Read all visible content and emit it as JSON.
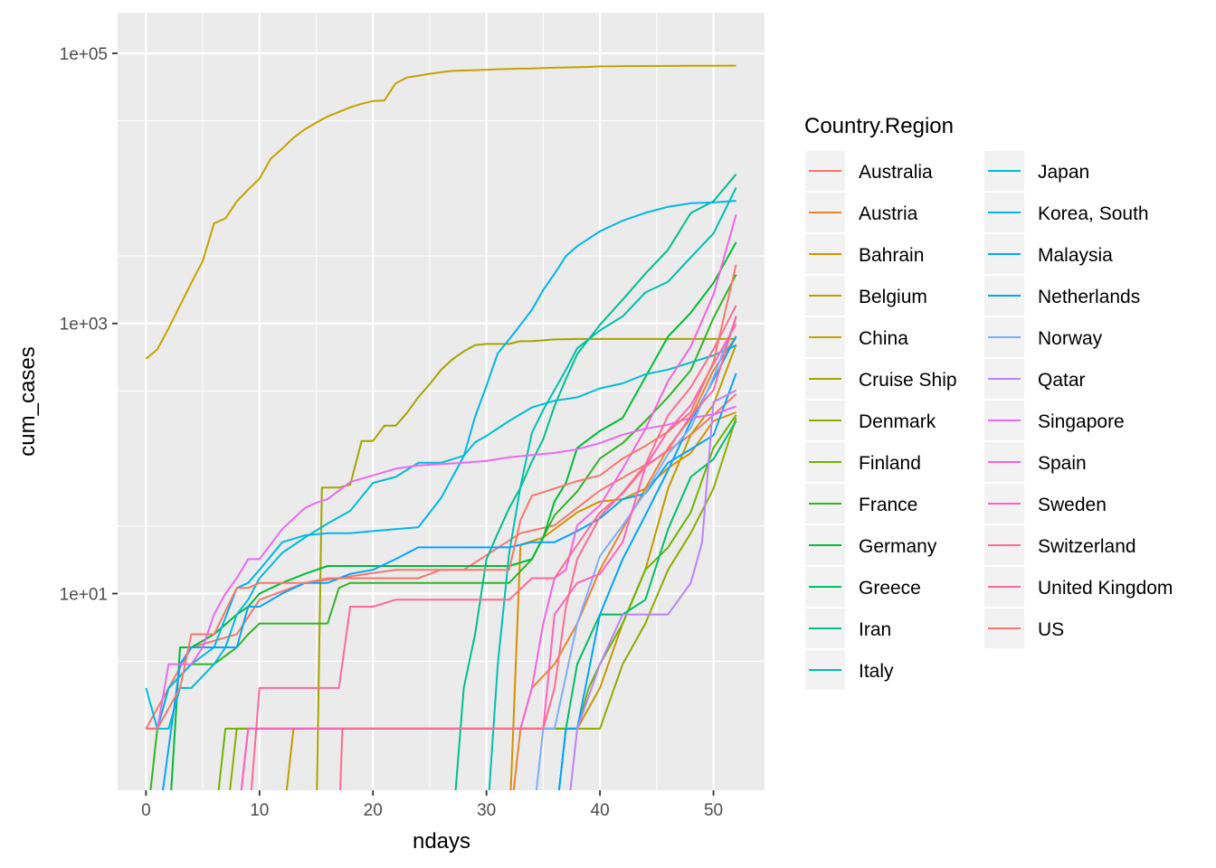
{
  "chart_data": {
    "type": "line",
    "xlabel": "ndays",
    "ylabel": "cum_cases",
    "x_scale": "linear",
    "y_scale": "log10",
    "xlim": [
      -2.5,
      54.5
    ],
    "ylim": [
      0.35,
      200000
    ],
    "x_ticks": [
      0,
      10,
      20,
      30,
      40,
      50
    ],
    "x_tick_labels": [
      "0",
      "10",
      "20",
      "30",
      "40",
      "50"
    ],
    "y_ticks": [
      10,
      1000,
      100000
    ],
    "y_tick_labels": [
      "1e+01",
      "1e+03",
      "1e+05"
    ],
    "grid": true,
    "panel_background": "#ebebeb",
    "legend_title": "Country.Region",
    "legend_position": "right",
    "series": [
      {
        "name": "Australia",
        "color": "#F8766D",
        "x": [
          0,
          4,
          8,
          10,
          14,
          22,
          28,
          33,
          36,
          40,
          45,
          48,
          50,
          52
        ],
        "y": [
          1,
          4,
          5,
          9,
          12,
          15,
          15,
          28,
          32,
          58,
          100,
          150,
          210,
          300
        ]
      },
      {
        "name": "Austria",
        "color": "#EA8331",
        "x": [
          0,
          32,
          33,
          34,
          36,
          38,
          40,
          42,
          44,
          46,
          48,
          50,
          52
        ],
        "y": [
          0,
          0,
          1,
          2,
          3,
          6,
          15,
          30,
          60,
          120,
          200,
          450,
          800
        ]
      },
      {
        "name": "Bahrain",
        "color": "#D89000",
        "x": [
          0,
          32,
          33,
          35,
          38,
          40,
          42,
          44,
          46,
          48,
          50,
          52
        ],
        "y": [
          0,
          0,
          23,
          26,
          40,
          48,
          50,
          60,
          85,
          110,
          190,
          220
        ]
      },
      {
        "name": "Belgium",
        "color": "#C09B00",
        "x": [
          0,
          12,
          13,
          30,
          33,
          36,
          38,
          40,
          42,
          44,
          46,
          48,
          50,
          52
        ],
        "y": [
          0,
          0,
          1,
          1,
          1,
          1,
          1,
          2,
          6,
          15,
          60,
          150,
          250,
          700
        ]
      },
      {
        "name": "China",
        "color": "#C5A200",
        "x": [
          0,
          1,
          2,
          4,
          5,
          6,
          7,
          8,
          9,
          10,
          11,
          12,
          13,
          14,
          15,
          16,
          17,
          18,
          19,
          20,
          21,
          22,
          23,
          24,
          25,
          26,
          27,
          28,
          29,
          30,
          31,
          32,
          33,
          34,
          35,
          36,
          37,
          38,
          39,
          40,
          41,
          42,
          44,
          46,
          48,
          50,
          52
        ],
        "y": [
          548,
          643,
          920,
          2000,
          2900,
          5500,
          6000,
          8000,
          9800,
          11800,
          16600,
          19700,
          23700,
          27400,
          30600,
          34100,
          36800,
          39800,
          42300,
          44300,
          44800,
          59900,
          66300,
          68300,
          70500,
          72400,
          74100,
          74600,
          75000,
          75600,
          76200,
          76700,
          77000,
          77200,
          77700,
          78200,
          78600,
          78900,
          79300,
          80000,
          80100,
          80400,
          80500,
          80700,
          80800,
          80900,
          81000
        ]
      },
      {
        "name": "Cruise Ship",
        "color": "#A3A500",
        "x": [
          0,
          15,
          15.5,
          17,
          18,
          19,
          20,
          21,
          22,
          23,
          24,
          25,
          26,
          27,
          28,
          29,
          30,
          31,
          32,
          33,
          34,
          35,
          36,
          38,
          40,
          45,
          52
        ],
        "y": [
          0,
          0,
          61,
          61,
          64,
          135,
          135,
          175,
          175,
          218,
          285,
          355,
          454,
          542,
          621,
          691,
          705,
          705,
          705,
          739,
          741,
          750,
          762,
          767,
          767,
          767,
          767
        ]
      },
      {
        "name": "Denmark",
        "color": "#8EAB00",
        "x": [
          0,
          7,
          8,
          30,
          38,
          40,
          42,
          44,
          46,
          48,
          50,
          52
        ],
        "y": [
          0,
          0,
          1,
          1,
          1,
          1,
          3,
          6,
          15,
          28,
          60,
          200
        ]
      },
      {
        "name": "Finland",
        "color": "#6CB400",
        "x": [
          0,
          6,
          7,
          38,
          39,
          40,
          42,
          44,
          46,
          48,
          50,
          52
        ],
        "y": [
          0,
          0,
          1,
          1,
          2,
          3,
          6,
          15,
          22,
          40,
          120,
          210
        ]
      },
      {
        "name": "France",
        "color": "#31B425",
        "x": [
          0,
          1,
          2,
          4,
          5,
          6,
          8,
          9,
          10,
          11,
          12,
          13,
          14,
          15,
          16,
          17,
          18,
          20,
          22,
          24,
          26,
          28,
          30,
          32,
          34,
          36,
          38,
          40,
          42,
          44,
          46,
          48,
          50,
          52
        ],
        "y": [
          0,
          1,
          2,
          3,
          3,
          3,
          4,
          5,
          6,
          6,
          6,
          6,
          6,
          6,
          6,
          11,
          12,
          12,
          12,
          12,
          12,
          12,
          12,
          12,
          18,
          38,
          57,
          100,
          130,
          190,
          285,
          450,
          1100,
          2300
        ]
      },
      {
        "name": "Germany",
        "color": "#00BA38",
        "x": [
          0,
          2,
          3,
          4,
          6,
          8,
          9,
          10,
          12,
          14,
          16,
          18,
          20,
          22,
          24,
          26,
          28,
          30,
          32,
          34,
          35,
          36,
          37,
          38,
          40,
          42,
          44,
          46,
          48,
          50,
          52
        ],
        "y": [
          0,
          0,
          4,
          4,
          5,
          7,
          8,
          10,
          12,
          14,
          16,
          16,
          16,
          16,
          16,
          16,
          16,
          16,
          16,
          18,
          26,
          48,
          66,
          120,
          160,
          200,
          400,
          800,
          1200,
          2000,
          4000
        ]
      },
      {
        "name": "Greece",
        "color": "#00BE6A",
        "x": [
          0,
          36,
          37,
          38,
          40,
          42,
          44,
          46,
          48,
          50,
          52
        ],
        "y": [
          0,
          0,
          1,
          3,
          7,
          7,
          9,
          30,
          73,
          99,
          190
        ]
      },
      {
        "name": "Iran",
        "color": "#00C08D",
        "x": [
          0,
          27,
          28,
          29,
          30,
          31,
          32,
          33,
          34,
          35,
          36,
          37,
          38,
          40,
          42,
          44,
          46,
          48,
          50,
          52
        ],
        "y": [
          0,
          0,
          2,
          5,
          18,
          28,
          43,
          61,
          95,
          139,
          245,
          388,
          593,
          978,
          1501,
          2336,
          3513,
          6566,
          8042,
          12729
        ]
      },
      {
        "name": "Italy",
        "color": "#00C0AF",
        "x": [
          0,
          30,
          31,
          32,
          33,
          34,
          35,
          36,
          37,
          38,
          40,
          42,
          44,
          46,
          48,
          50,
          52
        ],
        "y": [
          0,
          0,
          3,
          20,
          62,
          155,
          229,
          322,
          453,
          655,
          888,
          1128,
          1694,
          2036,
          3089,
          4636,
          10149
        ]
      },
      {
        "name": "Japan",
        "color": "#00BCD4",
        "x": [
          0,
          1,
          2,
          3,
          4,
          6,
          7,
          8,
          9,
          10,
          12,
          14,
          16,
          18,
          20,
          22,
          24,
          26,
          28,
          29,
          30,
          32,
          34,
          36,
          38,
          40,
          42,
          44,
          46,
          48,
          50,
          52
        ],
        "y": [
          2,
          1,
          1,
          2,
          2,
          3,
          4,
          7,
          9,
          13,
          20,
          26,
          33,
          41,
          66,
          73,
          93,
          93,
          105,
          132,
          147,
          190,
          239,
          268,
          284,
          331,
          360,
          420,
          455,
          514,
          581,
          689
        ]
      },
      {
        "name": "Korea, South",
        "color": "#00B6EB",
        "x": [
          0,
          1,
          2,
          4,
          6,
          8,
          9,
          10,
          12,
          14,
          16,
          18,
          20,
          22,
          24,
          26,
          28,
          29,
          30,
          31,
          32,
          33,
          34,
          35,
          36,
          37,
          38,
          40,
          42,
          44,
          46,
          48,
          50,
          52
        ],
        "y": [
          1,
          1,
          2,
          3,
          4,
          11,
          12,
          15,
          24,
          27,
          28,
          28,
          29,
          30,
          31,
          51,
          104,
          204,
          346,
          602,
          763,
          977,
          1261,
          1766,
          2337,
          3150,
          3736,
          4812,
          5766,
          6593,
          7313,
          7755,
          7869,
          8086
        ]
      },
      {
        "name": "Malaysia",
        "color": "#06A4FF",
        "x": [
          0,
          1,
          3,
          4,
          5,
          6,
          8,
          9,
          10,
          12,
          14,
          16,
          18,
          20,
          22,
          24,
          26,
          28,
          30,
          32,
          34,
          36,
          38,
          40,
          42,
          44,
          46,
          48,
          50,
          52
        ],
        "y": [
          0,
          0,
          3,
          4,
          4,
          4,
          4,
          8,
          8,
          10,
          12,
          12,
          14,
          15,
          18,
          22,
          22,
          22,
          22,
          22,
          24,
          24,
          29,
          36,
          50,
          55,
          93,
          117,
          149,
          428
        ]
      },
      {
        "name": "Netherlands",
        "color": "#00A5FF",
        "x": [
          0,
          36,
          37,
          38,
          40,
          42,
          44,
          46,
          48,
          50,
          52
        ],
        "y": [
          0,
          0,
          1,
          1,
          7,
          18,
          38,
          82,
          188,
          382,
          804
        ]
      },
      {
        "name": "Norway",
        "color": "#7CAEFF",
        "x": [
          0,
          34,
          35,
          36,
          38,
          40,
          42,
          44,
          46,
          48,
          50,
          52
        ],
        "y": [
          0,
          0,
          1,
          1,
          6,
          19,
          32,
          56,
          108,
          169,
          400,
          1100
        ]
      },
      {
        "name": "Qatar",
        "color": "#B983FF",
        "x": [
          0,
          37,
          38,
          40,
          42,
          44,
          46,
          48,
          49,
          50,
          52
        ],
        "y": [
          0,
          0,
          1,
          3,
          7,
          7,
          7,
          12,
          24,
          262,
          320
        ]
      },
      {
        "name": "Singapore",
        "color": "#E76BF3",
        "x": [
          0,
          1,
          2,
          4,
          5,
          6,
          7,
          8,
          9,
          10,
          12,
          14,
          15,
          16,
          18,
          20,
          22,
          24,
          26,
          28,
          30,
          32,
          34,
          36,
          38,
          40,
          42,
          44,
          46,
          48,
          50,
          52
        ],
        "y": [
          1,
          1,
          3,
          3,
          4,
          7,
          10,
          13,
          18,
          18,
          30,
          43,
          47,
          50,
          67,
          75,
          84,
          89,
          91,
          93,
          96,
          102,
          106,
          110,
          117,
          130,
          150,
          166,
          178,
          200,
          212,
          243
        ]
      },
      {
        "name": "Spain",
        "color": "#F763E0",
        "x": [
          0,
          8,
          9,
          33,
          34,
          35,
          36,
          37,
          38,
          40,
          42,
          44,
          46,
          48,
          50,
          52
        ],
        "y": [
          0,
          0,
          1,
          1,
          2,
          6,
          13,
          15,
          32,
          45,
          84,
          165,
          374,
          674,
          1639,
          6391
        ]
      },
      {
        "name": "Sweden",
        "color": "#FF62BC",
        "x": [
          0,
          8,
          9,
          34,
          35,
          36,
          38,
          40,
          42,
          44,
          46,
          48,
          50,
          52
        ],
        "y": [
          0,
          0,
          1,
          1,
          1,
          7,
          12,
          14,
          24,
          87,
          161,
          248,
          500,
          992
        ]
      },
      {
        "name": "Switzerland",
        "color": "#FF6C90",
        "x": [
          0,
          17,
          17.3,
          18,
          20,
          30,
          35,
          36,
          37,
          38,
          40,
          42,
          44,
          46,
          48,
          50,
          52
        ],
        "y": [
          0,
          0,
          1,
          1,
          1,
          1,
          1,
          2,
          8,
          18,
          37,
          56,
          90,
          209,
          337,
          645,
          1359
        ]
      },
      {
        "name": "United Kingdom",
        "color": "#FF6A98",
        "x": [
          0,
          9,
          10,
          17,
          18,
          20,
          22,
          24,
          26,
          28,
          30,
          32,
          34,
          36,
          38,
          40,
          42,
          44,
          46,
          48,
          50,
          52
        ],
        "y": [
          0,
          0,
          2,
          2,
          8,
          8,
          9,
          9,
          9,
          9,
          9,
          9,
          13,
          13,
          23,
          40,
          55,
          87,
          116,
          208,
          321,
          1140
        ]
      },
      {
        "name": "US",
        "color": "#F8766D",
        "x": [
          0,
          1,
          3,
          4,
          5,
          6,
          8,
          9,
          10,
          12,
          14,
          16,
          18,
          20,
          22,
          24,
          26,
          28,
          30,
          32,
          33,
          34,
          36,
          38,
          40,
          42,
          44,
          46,
          48,
          50,
          52
        ],
        "y": [
          1,
          1,
          2,
          5,
          5,
          5,
          11,
          11,
          12,
          12,
          12,
          13,
          13,
          13,
          13,
          13,
          15,
          15,
          15,
          15,
          35,
          53,
          60,
          68,
          75,
          100,
          124,
          158,
          221,
          519,
          2727
        ]
      }
    ]
  }
}
